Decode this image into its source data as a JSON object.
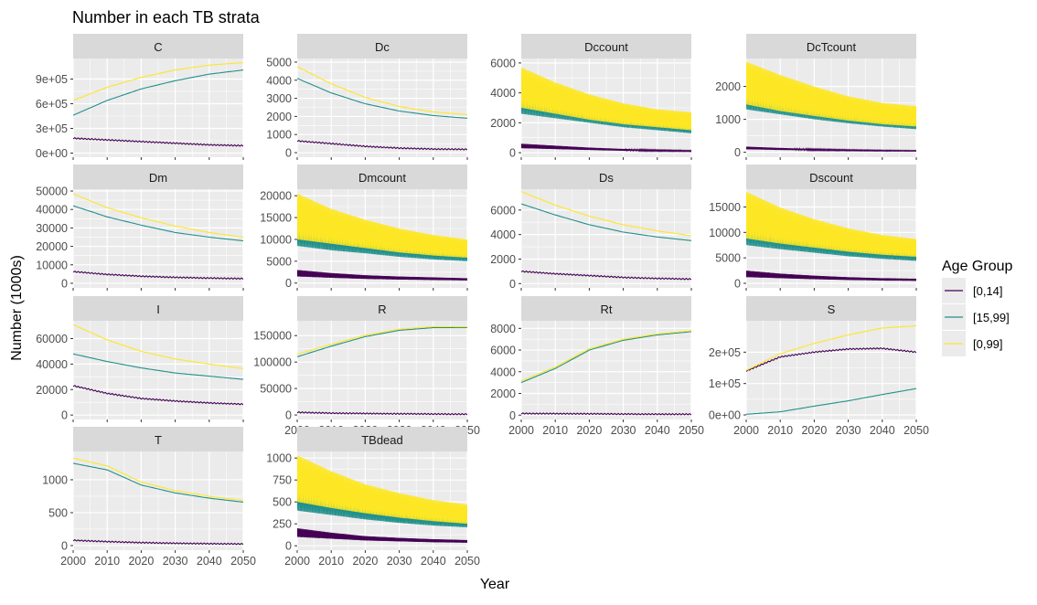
{
  "title": "Number in each TB strata",
  "xlabel": "Year",
  "ylabel": "Number (1000s)",
  "legend": {
    "title": "Age Group",
    "placement": "right",
    "items": [
      {
        "label": "[0,14]",
        "color": "#440154"
      },
      {
        "label": "[15,99]",
        "color": "#21908C"
      },
      {
        "label": "[0,99]",
        "color": "#FDE725"
      }
    ]
  },
  "chart_data": {
    "type": "line",
    "facet_layout": "wrap 4 columns, free y scales",
    "grid": true,
    "x_range": [
      2000,
      2050
    ],
    "x_ticks": [
      2000,
      2010,
      2020,
      2030,
      2040,
      2050
    ],
    "panels": [
      {
        "name": "C",
        "ylim": [
          -50000,
          1150000
        ],
        "y_ticks": [
          0,
          300000,
          600000,
          900000
        ],
        "y_tick_labels": [
          "0e+00",
          "3e+05",
          "6e+05",
          "9e+05"
        ],
        "oscillating": false,
        "x": [
          2000,
          2010,
          2020,
          2030,
          2040,
          2050
        ],
        "series": [
          {
            "name": "[0,14]",
            "values": [
              180000,
              160000,
              140000,
              120000,
              100000,
              90000
            ]
          },
          {
            "name": "[15,99]",
            "values": [
              460000,
              640000,
              780000,
              880000,
              960000,
              1010000
            ]
          },
          {
            "name": "[0,99]",
            "values": [
              640000,
              800000,
              920000,
              1010000,
              1070000,
              1100000
            ]
          }
        ]
      },
      {
        "name": "Dc",
        "ylim": [
          -250,
          5200
        ],
        "y_ticks": [
          0,
          1000,
          2000,
          3000,
          4000,
          5000
        ],
        "y_tick_labels": [
          "0",
          "1000",
          "2000",
          "3000",
          "4000",
          "5000"
        ],
        "oscillating": false,
        "x": [
          2000,
          2010,
          2020,
          2030,
          2040,
          2050
        ],
        "series": [
          {
            "name": "[0,14]",
            "values": [
              650,
              500,
              350,
              250,
              200,
              180
            ]
          },
          {
            "name": "[15,99]",
            "values": [
              4100,
              3300,
              2700,
              2300,
              2050,
              1900
            ]
          },
          {
            "name": "[0,99]",
            "values": [
              4750,
              3800,
              3050,
              2550,
              2250,
              2100
            ]
          }
        ]
      },
      {
        "name": "Dccount",
        "ylim": [
          -300,
          6300
        ],
        "y_ticks": [
          0,
          2000,
          4000,
          6000
        ],
        "y_tick_labels": [
          "0",
          "2000",
          "4000",
          "6000"
        ],
        "oscillating": true,
        "x": [
          2000,
          2010,
          2020,
          2030,
          2040,
          2050
        ],
        "series": [
          {
            "name": "[0,14]",
            "values": [
              600,
              470,
              340,
              250,
              190,
              150
            ],
            "lo": [
              300,
              240,
              180,
              130,
              100,
              80
            ]
          },
          {
            "name": "[15,99]",
            "values": [
              5000,
              4200,
              3500,
              3000,
              2600,
              2300
            ],
            "lo": [
              2600,
              2300,
              2000,
              1700,
              1500,
              1300
            ]
          },
          {
            "name": "[0,99]",
            "values": [
              5700,
              4700,
              3900,
              3300,
              2900,
              2700
            ],
            "lo": [
              3000,
              2600,
              2200,
              1900,
              1700,
              1500
            ]
          }
        ]
      },
      {
        "name": "DcTcount",
        "ylim": [
          -150,
          2850
        ],
        "y_ticks": [
          0,
          1000,
          2000
        ],
        "y_tick_labels": [
          "0",
          "1000",
          "2000"
        ],
        "oscillating": true,
        "x": [
          2000,
          2010,
          2020,
          2030,
          2040,
          2050
        ],
        "series": [
          {
            "name": "[0,14]",
            "values": [
              170,
              130,
              100,
              80,
              65,
              55
            ],
            "lo": [
              90,
              70,
              55,
              45,
              35,
              30
            ]
          },
          {
            "name": "[15,99]",
            "values": [
              2400,
              2050,
              1750,
              1500,
              1300,
              1200
            ],
            "lo": [
              1300,
              1150,
              1000,
              880,
              780,
              700
            ]
          },
          {
            "name": "[0,99]",
            "values": [
              2750,
              2350,
              2000,
              1700,
              1500,
              1400
            ],
            "lo": [
              1450,
              1250,
              1100,
              960,
              850,
              780
            ]
          }
        ]
      },
      {
        "name": "Dm",
        "ylim": [
          -2500,
          51000
        ],
        "y_ticks": [
          0,
          10000,
          20000,
          30000,
          40000,
          50000
        ],
        "y_tick_labels": [
          "0",
          "10000",
          "20000",
          "30000",
          "40000",
          "50000"
        ],
        "oscillating": false,
        "x": [
          2000,
          2010,
          2020,
          2030,
          2040,
          2050
        ],
        "series": [
          {
            "name": "[0,14]",
            "values": [
              6300,
              4800,
              3800,
              3200,
              2800,
              2500
            ]
          },
          {
            "name": "[15,99]",
            "values": [
              42000,
              36000,
              31500,
              27500,
              25000,
              23000
            ]
          },
          {
            "name": "[0,99]",
            "values": [
              48500,
              41000,
              35500,
              31000,
              27500,
              25000
            ]
          }
        ]
      },
      {
        "name": "Dmcount",
        "ylim": [
          -1100,
          21500
        ],
        "y_ticks": [
          0,
          5000,
          10000,
          15000,
          20000
        ],
        "y_tick_labels": [
          "0",
          "5000",
          "10000",
          "15000",
          "20000"
        ],
        "oscillating": true,
        "x": [
          2000,
          2010,
          2020,
          2030,
          2040,
          2050
        ],
        "series": [
          {
            "name": "[0,14]",
            "values": [
              3000,
              2300,
              1800,
              1500,
              1300,
              1100
            ],
            "lo": [
              1500,
              1200,
              950,
              800,
              700,
              600
            ]
          },
          {
            "name": "[15,99]",
            "values": [
              17500,
              14500,
              12500,
              10800,
              9500,
              8500
            ],
            "lo": [
              8500,
              7500,
              6800,
              6000,
              5400,
              5000
            ]
          },
          {
            "name": "[0,99]",
            "values": [
              20500,
              17000,
              14500,
              12500,
              11000,
              10000
            ],
            "lo": [
              10000,
              9000,
              8000,
              7000,
              6300,
              5800
            ]
          }
        ]
      },
      {
        "name": "Ds",
        "ylim": [
          -350,
          7700
        ],
        "y_ticks": [
          0,
          2000,
          4000,
          6000
        ],
        "y_tick_labels": [
          "0",
          "2000",
          "4000",
          "6000"
        ],
        "oscillating": false,
        "x": [
          2000,
          2010,
          2020,
          2030,
          2040,
          2050
        ],
        "series": [
          {
            "name": "[0,14]",
            "values": [
              1000,
              800,
              650,
              500,
              420,
              370
            ]
          },
          {
            "name": "[15,99]",
            "values": [
              6500,
              5600,
              4800,
              4200,
              3800,
              3500
            ]
          },
          {
            "name": "[0,99]",
            "values": [
              7500,
              6400,
              5500,
              4800,
              4300,
              3900
            ]
          }
        ]
      },
      {
        "name": "Dscount",
        "ylim": [
          -900,
          18500
        ],
        "y_ticks": [
          0,
          5000,
          10000,
          15000
        ],
        "y_tick_labels": [
          "0",
          "5000",
          "10000",
          "15000"
        ],
        "oscillating": true,
        "x": [
          2000,
          2010,
          2020,
          2030,
          2040,
          2050
        ],
        "series": [
          {
            "name": "[0,14]",
            "values": [
              2500,
              1900,
              1500,
              1200,
              1000,
              900
            ],
            "lo": [
              1200,
              1000,
              800,
              650,
              550,
              480
            ]
          },
          {
            "name": "[15,99]",
            "values": [
              15500,
              12800,
              10800,
              9300,
              8200,
              7500
            ],
            "lo": [
              7500,
              6700,
              6000,
              5300,
              4800,
              4400
            ]
          },
          {
            "name": "[0,99]",
            "values": [
              18000,
              14900,
              12600,
              10800,
              9500,
              8700
            ],
            "lo": [
              8800,
              7800,
              7000,
              6200,
              5600,
              5200
            ]
          }
        ]
      },
      {
        "name": "I",
        "ylim": [
          -3500,
          74000
        ],
        "y_ticks": [
          0,
          20000,
          40000,
          60000
        ],
        "y_tick_labels": [
          "0",
          "20000",
          "40000",
          "60000"
        ],
        "oscillating": false,
        "x": [
          2000,
          2010,
          2020,
          2030,
          2040,
          2050
        ],
        "series": [
          {
            "name": "[0,14]",
            "values": [
              23000,
              17000,
              13000,
              11000,
              9500,
              8500
            ]
          },
          {
            "name": "[15,99]",
            "values": [
              48000,
              42000,
              37000,
              33000,
              30500,
              28000
            ]
          },
          {
            "name": "[0,99]",
            "values": [
              71000,
              59000,
              50000,
              44000,
              40000,
              36500
            ]
          }
        ]
      },
      {
        "name": "R",
        "ylim": [
          -8500,
          178000
        ],
        "y_ticks": [
          0,
          50000,
          100000,
          150000
        ],
        "y_tick_labels": [
          "0",
          "50000",
          "100000",
          "150000"
        ],
        "oscillating": false,
        "x": [
          2000,
          2010,
          2020,
          2030,
          2040,
          2050
        ],
        "series": [
          {
            "name": "[0,14]",
            "values": [
              5000,
              3500,
              2800,
              2200,
              1800,
              1500
            ]
          },
          {
            "name": "[15,99]",
            "values": [
              110000,
              130000,
              148000,
              160000,
              165000,
              165000
            ]
          },
          {
            "name": "[0,99]",
            "values": [
              115000,
              133500,
              150800,
              162000,
              167000,
              166500
            ]
          }
        ]
      },
      {
        "name": "Rt",
        "ylim": [
          -400,
          8700
        ],
        "y_ticks": [
          0,
          2000,
          4000,
          6000,
          8000
        ],
        "y_tick_labels": [
          "0",
          "2000",
          "4000",
          "6000",
          "8000"
        ],
        "oscillating": false,
        "x": [
          2000,
          2010,
          2020,
          2030,
          2040,
          2050
        ],
        "series": [
          {
            "name": "[0,14]",
            "values": [
              150,
              140,
              120,
              100,
              90,
              80
            ]
          },
          {
            "name": "[15,99]",
            "values": [
              3000,
              4300,
              6000,
              6900,
              7400,
              7700
            ]
          },
          {
            "name": "[0,99]",
            "values": [
              3150,
              4440,
              6120,
              7000,
              7490,
              7780
            ]
          }
        ]
      },
      {
        "name": "S",
        "ylim": [
          -14500,
          300000
        ],
        "y_ticks": [
          0,
          100000,
          200000
        ],
        "y_tick_labels": [
          "0e+00",
          "1e+05",
          "2e+05"
        ],
        "oscillating": false,
        "x": [
          2000,
          2010,
          2020,
          2030,
          2040,
          2050
        ],
        "series": [
          {
            "name": "[0,14]",
            "values": [
              140000,
              185000,
              200000,
              210000,
              212000,
              200000
            ]
          },
          {
            "name": "[15,99]",
            "values": [
              2000,
              10000,
              28000,
              45000,
              65000,
              84000
            ]
          },
          {
            "name": "[0,99]",
            "values": [
              142000,
              195000,
              228000,
              255000,
              277000,
              284000
            ]
          }
        ]
      },
      {
        "name": "T",
        "ylim": [
          -70,
          1430
        ],
        "y_ticks": [
          0,
          500,
          1000
        ],
        "y_tick_labels": [
          "0",
          "500",
          "1000"
        ],
        "oscillating": false,
        "x": [
          2000,
          2010,
          2020,
          2030,
          2040,
          2050
        ],
        "series": [
          {
            "name": "[0,14]",
            "values": [
              80,
              60,
              45,
              35,
              28,
              25
            ]
          },
          {
            "name": "[15,99]",
            "values": [
              1250,
              1150,
              920,
              800,
              720,
              660
            ]
          },
          {
            "name": "[0,99]",
            "values": [
              1330,
              1210,
              965,
              835,
              748,
              685
            ]
          }
        ]
      },
      {
        "name": "TBdead",
        "ylim": [
          -50,
          1075
        ],
        "y_ticks": [
          0,
          250,
          500,
          750,
          1000
        ],
        "y_tick_labels": [
          "0",
          "250",
          "500",
          "750",
          "1000"
        ],
        "oscillating": true,
        "x": [
          2000,
          2010,
          2020,
          2030,
          2040,
          2050
        ],
        "series": [
          {
            "name": "[0,14]",
            "values": [
              200,
              150,
              110,
              90,
              75,
              65
            ],
            "lo": [
              100,
              80,
              60,
              50,
              40,
              35
            ]
          },
          {
            "name": "[15,99]",
            "values": [
              850,
              700,
              580,
              500,
              440,
              400
            ],
            "lo": [
              400,
              350,
              300,
              260,
              230,
              210
            ]
          },
          {
            "name": "[0,99]",
            "values": [
              1030,
              850,
              700,
              600,
              520,
              470
            ],
            "lo": [
              500,
              430,
              370,
              320,
              280,
              250
            ]
          }
        ]
      }
    ]
  }
}
